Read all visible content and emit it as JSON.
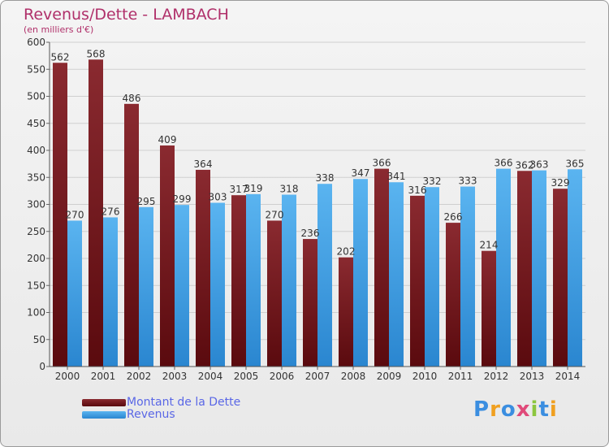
{
  "chart_data": {
    "type": "bar",
    "title": "Revenus/Dette - LAMBACH",
    "subtitle": "(en milliers d'€)",
    "categories": [
      "2000",
      "2001",
      "2002",
      "2003",
      "2004",
      "2005",
      "2006",
      "2007",
      "2008",
      "2009",
      "2010",
      "2011",
      "2012",
      "2013",
      "2014"
    ],
    "series": [
      {
        "name": "Montant de la Dette",
        "values": [
          562,
          568,
          486,
          409,
          364,
          317,
          270,
          236,
          202,
          366,
          316,
          266,
          214,
          362,
          329
        ],
        "color": "#7a1e22"
      },
      {
        "name": "Revenus",
        "values": [
          270,
          276,
          295,
          299,
          303,
          319,
          318,
          338,
          347,
          341,
          332,
          333,
          366,
          363,
          365
        ],
        "color": "#4aa3e6"
      }
    ],
    "ylim": [
      0,
      600
    ],
    "yticks": [
      0,
      50,
      100,
      150,
      200,
      250,
      300,
      350,
      400,
      450,
      500,
      550,
      600
    ],
    "grid": true,
    "legend": "bottom-left"
  },
  "brand": {
    "letters": [
      "P",
      "r",
      "o",
      "x",
      "i",
      "t",
      "i"
    ],
    "colors": [
      "#3b8ee0",
      "#f0a020",
      "#3b8ee0",
      "#e04a7a",
      "#8cc63f",
      "#3b8ee0",
      "#f0a020"
    ]
  }
}
